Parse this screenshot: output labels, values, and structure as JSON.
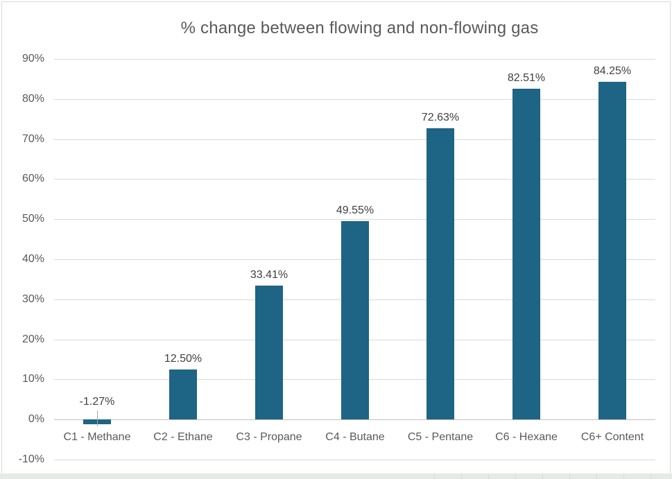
{
  "chart_data": {
    "type": "bar",
    "title": "% change between flowing and non-flowing gas",
    "categories": [
      "C1 - Methane",
      "C2 - Ethane",
      "C3 - Propane",
      "C4 - Butane",
      "C5 - Pentane",
      "C6 - Hexane",
      "C6+ Content"
    ],
    "values": [
      -1.27,
      12.5,
      33.41,
      49.55,
      72.63,
      82.51,
      84.25
    ],
    "data_labels": [
      "-1.27%",
      "12.50%",
      "33.41%",
      "49.55%",
      "72.63%",
      "82.51%",
      "84.25%"
    ],
    "y_tick_values": [
      90,
      80,
      70,
      60,
      50,
      40,
      30,
      20,
      10,
      0,
      -10
    ],
    "y_tick_labels": [
      "90%",
      "80%",
      "70%",
      "60%",
      "50%",
      "40%",
      "30%",
      "20%",
      "10%",
      "0%",
      "-10%"
    ],
    "ylim": [
      -10,
      90
    ],
    "xlabel": "",
    "ylabel": "",
    "grid": true,
    "legend": "none",
    "colors": {
      "bar": "#1E6484",
      "gridline": "#D9D9D9",
      "axis_line": "#BFBFBF",
      "tick_label": "#595959",
      "category_label": "#595959",
      "data_label": "#404040",
      "title": "#595959",
      "leader_line": "#A6A6A6",
      "frame_border": "#D9D9D9",
      "bottom_strip": "#E7E9E6"
    }
  }
}
